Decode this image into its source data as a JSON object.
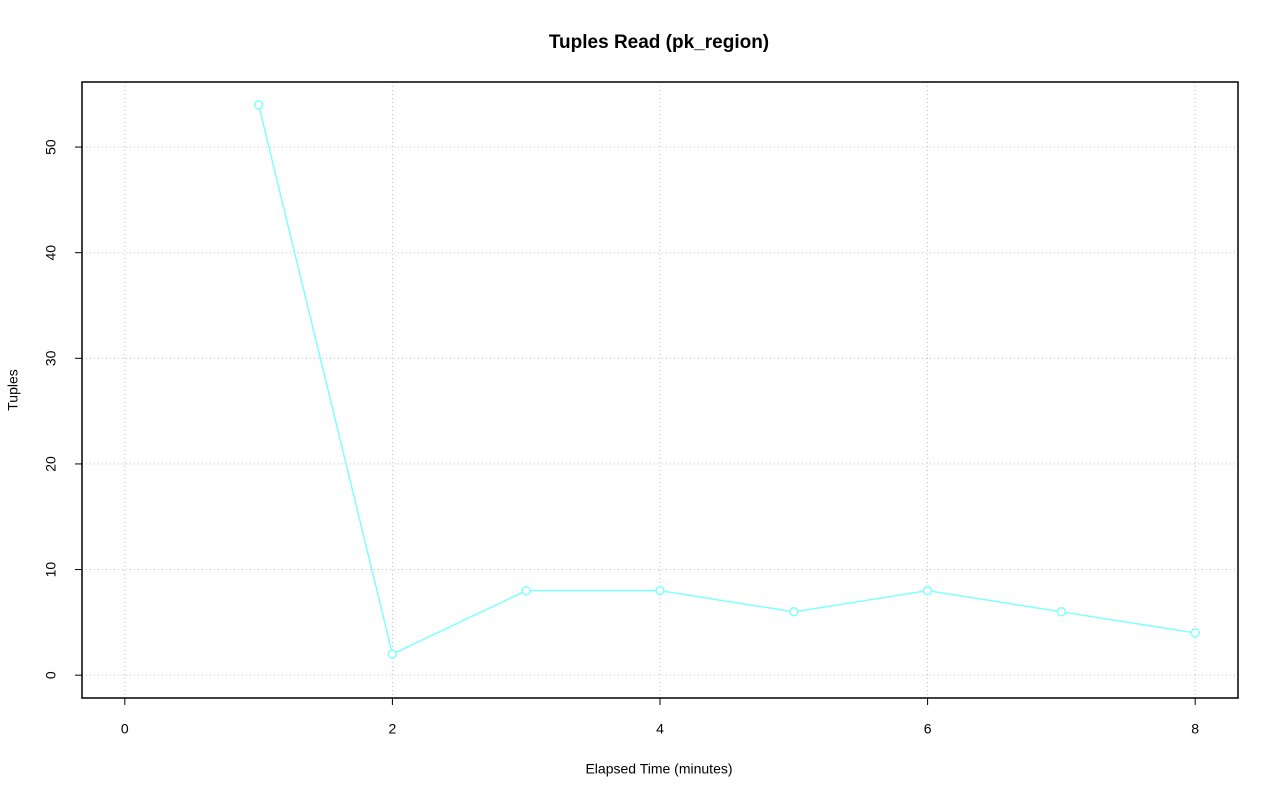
{
  "chart_data": {
    "type": "line",
    "title": "Tuples Read (pk_region)",
    "x_label": "Elapsed Time (minutes)",
    "y_label": "Tuples",
    "x": [
      1,
      2,
      3,
      4,
      5,
      6,
      7,
      8
    ],
    "series": [
      {
        "name": "pk_region",
        "color": "#80ffff",
        "values": [
          54,
          2,
          8,
          8,
          6,
          8,
          6,
          4
        ]
      }
    ],
    "xlim": [
      -0.32,
      8.32
    ],
    "xticks": [
      0,
      2,
      4,
      6,
      8
    ],
    "ylim": [
      -2.16,
      56.16
    ],
    "yticks": [
      0,
      10,
      20,
      30,
      40,
      50
    ],
    "grid": true
  }
}
